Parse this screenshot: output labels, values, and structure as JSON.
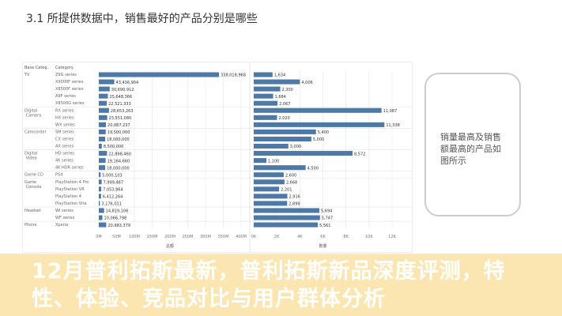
{
  "slide": {
    "title": "3.1 所提供数据中，销售最好的产品分别是哪些",
    "note": "销量最高及销售额最高的产品如图所示"
  },
  "banner": {
    "title": "12月普利拓斯最新，普利拓斯新品深度评测，特性、体验、竞品对比与用户群体分析"
  },
  "chart_data": {
    "type": "bar",
    "orientation": "horizontal",
    "headers": {
      "base_category": "Base Categ..",
      "category": "Category"
    },
    "base_groups": [
      {
        "name": "TV",
        "rows": 5
      },
      {
        "name": "Digital Camera",
        "rows": 3
      },
      {
        "name": "Camcorder",
        "rows": 3
      },
      {
        "name": "Digital Video",
        "rows": 3
      },
      {
        "name": "Game CD",
        "rows": 1
      },
      {
        "name": "Game Console",
        "rows": 4
      },
      {
        "name": "Headset",
        "rows": 2
      },
      {
        "name": "Phone",
        "rows": 1
      }
    ],
    "categories": [
      "Z9G series",
      "X9000F series",
      "X8500F series",
      "A9F series",
      "X8500G series",
      "RX series",
      "HX series",
      "WX series",
      "SM series",
      "CX series",
      "AX series",
      "HD series",
      "4K series",
      "4K HDR series",
      "PS4",
      "PlayStation 4 Pro",
      "PlayStation VR",
      "PlayStation 4",
      "PlayStation Vita",
      "WI series",
      "WF series",
      "Xperia"
    ],
    "series": [
      {
        "name": "总额",
        "values": [
          338018968,
          43436904,
          30690912,
          25648366,
          22521333,
          28653263,
          23551080,
          20087237,
          19500000,
          18000000,
          8500000,
          22898460,
          19164660,
          18000000,
          5000103,
          7999487,
          7053964,
          6412264,
          3176011,
          14819106,
          10066798,
          20983379
        ],
        "ticks": [
          "0M",
          "50M",
          "100M",
          "150M",
          "200M",
          "250M",
          "300M",
          "350M",
          "400M"
        ],
        "xlim": [
          0,
          400000000
        ]
      },
      {
        "name": "数量",
        "values": [
          1634,
          4006,
          2300,
          1684,
          2067,
          11087,
          2020,
          11338,
          5400,
          5000,
          3000,
          8572,
          1100,
          4500,
          2600,
          2668,
          2201,
          2916,
          2899,
          5694,
          5747,
          5561
        ],
        "ticks": [
          "0K",
          "2K",
          "4K",
          "6K",
          "8K",
          "10K",
          "12K"
        ],
        "xlim": [
          0,
          12500
        ]
      }
    ],
    "colors": {
      "bar": "#4e79a7",
      "grid": "#e6e6e6"
    },
    "grid": true
  }
}
